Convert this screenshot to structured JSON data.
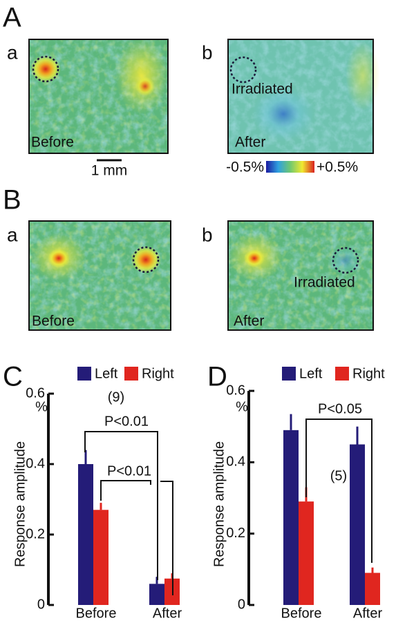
{
  "panels": [
    {
      "letter": "A",
      "images": [
        {
          "sub": "a",
          "label": "Before"
        },
        {
          "sub": "b",
          "label": "After",
          "note": "Irradiated"
        }
      ]
    },
    {
      "letter": "B",
      "images": [
        {
          "sub": "a",
          "label": "Before"
        },
        {
          "sub": "b",
          "label": "After",
          "note": "Irradiated"
        }
      ]
    }
  ],
  "scale_bar": "1 mm",
  "colorbar": {
    "min_label": "-0.5%",
    "max_label": "+0.5%"
  },
  "chart_data": [
    {
      "type": "bar",
      "panel": "C",
      "y_label": "Response amplitude",
      "y_unit": "%",
      "categories": [
        "Before",
        "After"
      ],
      "series": [
        {
          "name": "Left",
          "color": "#241c78",
          "values": [
            0.4,
            0.06
          ],
          "errors": [
            0.04,
            0.02
          ]
        },
        {
          "name": "Right",
          "color": "#e0261f",
          "values": [
            0.27,
            0.075
          ],
          "errors": [
            0.02,
            0.015
          ]
        }
      ],
      "ylim": [
        0,
        0.6
      ],
      "yticks": [
        0,
        0.2,
        0.4,
        0.6
      ],
      "annotations": [
        "(9)",
        "P<0.01",
        "P<0.01"
      ]
    },
    {
      "type": "bar",
      "panel": "D",
      "y_label": "Response amplitude",
      "y_unit": "%",
      "categories": [
        "Before",
        "After"
      ],
      "series": [
        {
          "name": "Left",
          "color": "#241c78",
          "values": [
            0.49,
            0.45
          ],
          "errors": [
            0.045,
            0.05
          ]
        },
        {
          "name": "Right",
          "color": "#e0261f",
          "values": [
            0.29,
            0.09
          ],
          "errors": [
            0.04,
            0.015
          ]
        }
      ],
      "ylim": [
        0,
        0.6
      ],
      "yticks": [
        0,
        0.2,
        0.4,
        0.6
      ],
      "annotations": [
        "(5)",
        "P<0.05"
      ]
    }
  ]
}
